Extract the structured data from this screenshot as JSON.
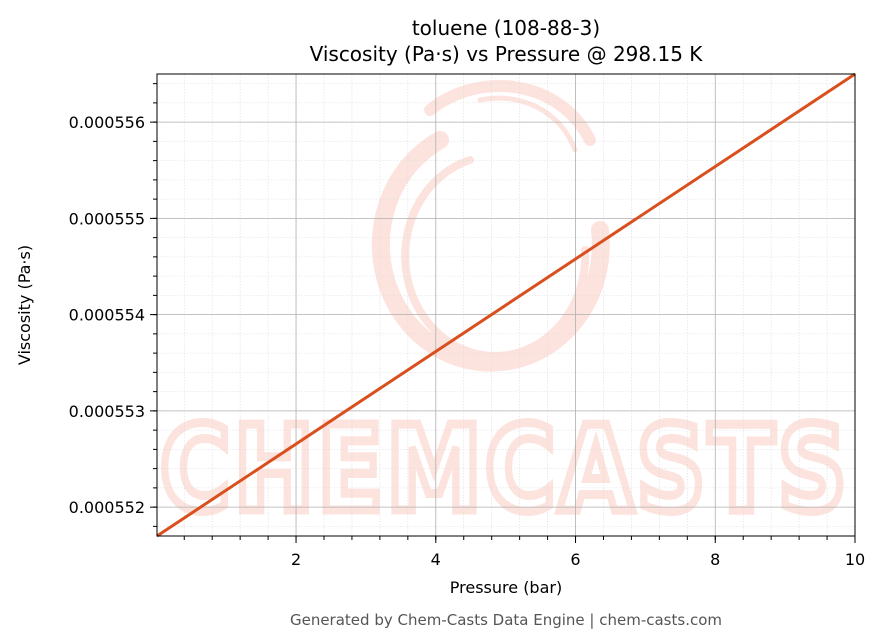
{
  "colors": {
    "line": "#d9501e",
    "grid_major": "#b0b0b0",
    "grid_minor": "#dcdcdc",
    "watermark": "#fde3de",
    "footer": "#555555"
  },
  "watermark": {
    "text": "CHEMCASTS",
    "logo": "chemcasts-swirl-logo"
  },
  "footer_text": "Generated by Chem-Casts Data Engine | chem-casts.com",
  "chart_data": {
    "type": "line",
    "title": [
      "toluene (108-88-3)",
      "Viscosity (Pa·s) vs Pressure @ 298.15 K"
    ],
    "xlabel": "Pressure (bar)",
    "ylabel": "Viscosity (Pa·s)",
    "xlim": [
      0.01,
      10
    ],
    "ylim": [
      0.0005517,
      0.0005565
    ],
    "x_ticks": [
      2,
      4,
      6,
      8,
      10
    ],
    "x_tick_labels": [
      "2",
      "4",
      "6",
      "8",
      "10"
    ],
    "y_ticks": [
      0.000552,
      0.000553,
      0.000554,
      0.000555,
      0.000556
    ],
    "y_tick_labels": [
      "0.000552",
      "0.000553",
      "0.000554",
      "0.000555",
      "0.000556"
    ],
    "grid": true,
    "minor_grid": true,
    "series": [
      {
        "x": [
          0.01,
          10
        ],
        "y": [
          0.0005517,
          0.0005565
        ]
      }
    ]
  }
}
